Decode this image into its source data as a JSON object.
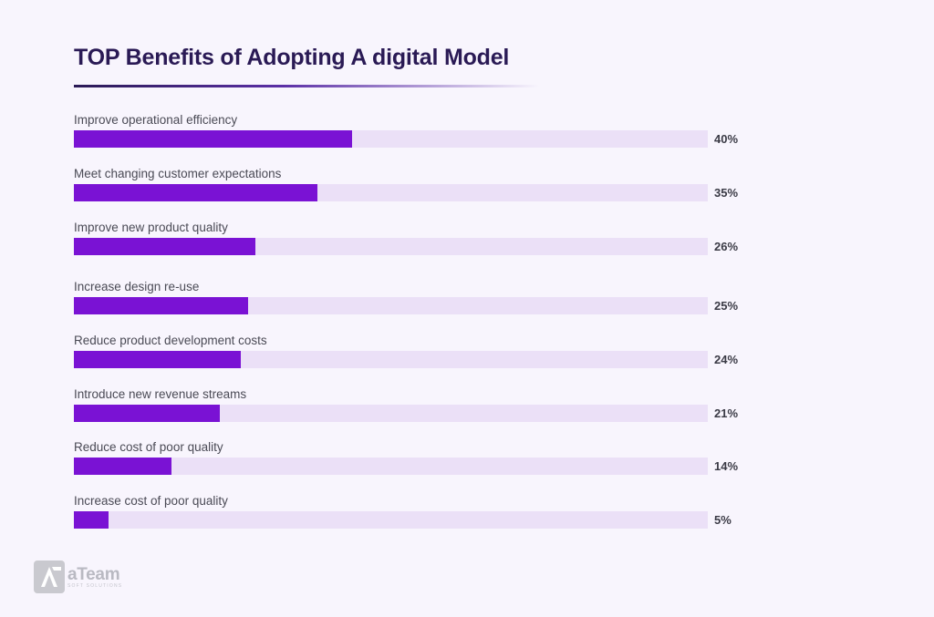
{
  "chart_data": {
    "type": "bar",
    "orientation": "horizontal",
    "title": "TOP Benefits of Adopting A digital Model",
    "categories": [
      "Improve operational efficiency",
      "Meet changing customer expectations",
      "Improve new product quality",
      "Increase design re-use",
      "Reduce product development costs",
      "Introduce new revenue streams",
      "Reduce cost of poor quality",
      "Increase cost of poor quality"
    ],
    "values": [
      40,
      35,
      26,
      25,
      24,
      21,
      14,
      5
    ],
    "value_labels": [
      "40%",
      "35%",
      "26%",
      "25%",
      "24%",
      "21%",
      "14%",
      "5%"
    ],
    "xlim": [
      0,
      91
    ],
    "unit": "%",
    "colors": {
      "bar": "#7a12d4",
      "track": "#ebe0f7"
    }
  },
  "brand": {
    "name": "aTeam",
    "tagline": "SOFT SOLUTIONS"
  }
}
